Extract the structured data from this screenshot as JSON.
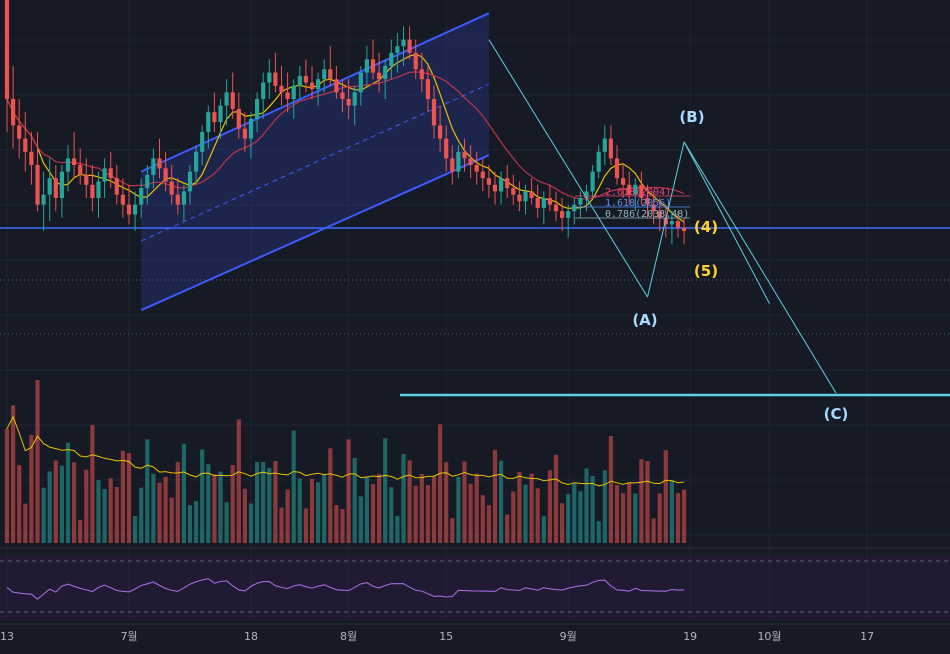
{
  "chart_data": {
    "type": "candlestick",
    "time_axis": {
      "ticks": [
        {
          "label": "13",
          "i": 0
        },
        {
          "label": "7월",
          "i": 20
        },
        {
          "label": "18",
          "i": 40
        },
        {
          "label": "8월",
          "i": 56
        },
        {
          "label": "15",
          "i": 72
        },
        {
          "label": "9월",
          "i": 92
        },
        {
          "label": "19",
          "i": 112
        },
        {
          "label": "10월",
          "i": 125
        },
        {
          "label": "17",
          "i": 141
        }
      ]
    },
    "price_axis": {
      "min": 0,
      "max": 100
    },
    "candles": [
      [
        100,
        100,
        60,
        70
      ],
      [
        70,
        80,
        55,
        62
      ],
      [
        62,
        70,
        52,
        58
      ],
      [
        58,
        66,
        48,
        54
      ],
      [
        54,
        60,
        44,
        50
      ],
      [
        50,
        60,
        36,
        38
      ],
      [
        38,
        48,
        30,
        41
      ],
      [
        41,
        52,
        33,
        46
      ],
      [
        46,
        50,
        36,
        40
      ],
      [
        40,
        50,
        34,
        48
      ],
      [
        48,
        56,
        42,
        52
      ],
      [
        52,
        60,
        46,
        50
      ],
      [
        50,
        55,
        44,
        47
      ],
      [
        47,
        52,
        40,
        44
      ],
      [
        44,
        50,
        36,
        40
      ],
      [
        40,
        48,
        34,
        45
      ],
      [
        45,
        52,
        40,
        49
      ],
      [
        49,
        54,
        43,
        46
      ],
      [
        46,
        50,
        38,
        41
      ],
      [
        41,
        46,
        34,
        38
      ],
      [
        38,
        44,
        32,
        35
      ],
      [
        35,
        42,
        30,
        38
      ],
      [
        38,
        46,
        34,
        43
      ],
      [
        43,
        50,
        38,
        47
      ],
      [
        47,
        55,
        43,
        52
      ],
      [
        52,
        58,
        46,
        49
      ],
      [
        49,
        54,
        42,
        45
      ],
      [
        45,
        50,
        38,
        41
      ],
      [
        41,
        46,
        35,
        38
      ],
      [
        38,
        44,
        33,
        42
      ],
      [
        42,
        50,
        38,
        48
      ],
      [
        48,
        56,
        44,
        54
      ],
      [
        54,
        62,
        50,
        60
      ],
      [
        60,
        68,
        55,
        66
      ],
      [
        66,
        72,
        60,
        63
      ],
      [
        63,
        70,
        58,
        68
      ],
      [
        68,
        76,
        62,
        72
      ],
      [
        72,
        78,
        64,
        67
      ],
      [
        67,
        72,
        58,
        61
      ],
      [
        61,
        66,
        54,
        58
      ],
      [
        58,
        66,
        52,
        64
      ],
      [
        64,
        72,
        60,
        70
      ],
      [
        70,
        78,
        64,
        75
      ],
      [
        75,
        82,
        70,
        78
      ],
      [
        78,
        84,
        72,
        74
      ],
      [
        74,
        80,
        68,
        72
      ],
      [
        72,
        78,
        66,
        70
      ],
      [
        70,
        76,
        64,
        74
      ],
      [
        74,
        80,
        70,
        77
      ],
      [
        77,
        82,
        72,
        75
      ],
      [
        75,
        80,
        70,
        73
      ],
      [
        73,
        78,
        68,
        76
      ],
      [
        76,
        82,
        72,
        79
      ],
      [
        79,
        86,
        74,
        76
      ],
      [
        76,
        80,
        70,
        72
      ],
      [
        72,
        76,
        66,
        70
      ],
      [
        70,
        76,
        64,
        68
      ],
      [
        68,
        74,
        62,
        72
      ],
      [
        72,
        80,
        68,
        78
      ],
      [
        78,
        86,
        74,
        82
      ],
      [
        82,
        88,
        76,
        78
      ],
      [
        78,
        84,
        72,
        76
      ],
      [
        76,
        82,
        70,
        80
      ],
      [
        80,
        88,
        76,
        84
      ],
      [
        84,
        90,
        78,
        86
      ],
      [
        86,
        92,
        80,
        88
      ],
      [
        88,
        92,
        82,
        84
      ],
      [
        84,
        88,
        76,
        79
      ],
      [
        79,
        84,
        72,
        76
      ],
      [
        76,
        80,
        66,
        70
      ],
      [
        70,
        74,
        58,
        62
      ],
      [
        62,
        68,
        54,
        58
      ],
      [
        58,
        62,
        48,
        52
      ],
      [
        52,
        56,
        44,
        48
      ],
      [
        48,
        56,
        46,
        54
      ],
      [
        54,
        58,
        48,
        52
      ],
      [
        52,
        56,
        46,
        50
      ],
      [
        50,
        54,
        44,
        48
      ],
      [
        48,
        52,
        42,
        46
      ],
      [
        46,
        50,
        40,
        44
      ],
      [
        44,
        48,
        38,
        42
      ],
      [
        42,
        48,
        38,
        46
      ],
      [
        46,
        50,
        40,
        43
      ],
      [
        43,
        47,
        38,
        41
      ],
      [
        41,
        45,
        36,
        39
      ],
      [
        39,
        44,
        35,
        42
      ],
      [
        42,
        46,
        38,
        40
      ],
      [
        40,
        44,
        34,
        37
      ],
      [
        37,
        42,
        32,
        40
      ],
      [
        40,
        44,
        36,
        38
      ],
      [
        38,
        42,
        33,
        36
      ],
      [
        36,
        40,
        30,
        34
      ],
      [
        34,
        38,
        28,
        36
      ],
      [
        36,
        40,
        32,
        38
      ],
      [
        38,
        42,
        34,
        40
      ],
      [
        40,
        44,
        36,
        42
      ],
      [
        42,
        50,
        40,
        48
      ],
      [
        48,
        56,
        46,
        54
      ],
      [
        54,
        62,
        50,
        58
      ],
      [
        58,
        62,
        50,
        52
      ],
      [
        52,
        56,
        44,
        46
      ],
      [
        46,
        50,
        40,
        44
      ],
      [
        44,
        48,
        38,
        41
      ],
      [
        41,
        46,
        36,
        44
      ],
      [
        44,
        48,
        38,
        40
      ],
      [
        40,
        44,
        34,
        38
      ],
      [
        38,
        42,
        32,
        36
      ],
      [
        36,
        40,
        30,
        34
      ],
      [
        34,
        38,
        28,
        32
      ],
      [
        32,
        36,
        26,
        33
      ],
      [
        33,
        36,
        28,
        31
      ],
      [
        31,
        34,
        26,
        30
      ]
    ],
    "volume": [],
    "annotations": {
      "wave_labels": [
        {
          "text": "(B)",
          "color": "#a8dcff"
        },
        {
          "text": "(A)",
          "color": "#a8dcff"
        },
        {
          "text": "(C)",
          "color": "#a8dcff"
        },
        {
          "text": "(4)",
          "color": "#ffd22e"
        },
        {
          "text": "(5)",
          "color": "#ffd22e"
        }
      ],
      "fib_levels": [
        "2.618(2094)",
        "1.618(2056)",
        "0.786(2038.48)"
      ]
    },
    "colors": {
      "up": "#26a69a",
      "down": "#ef5350",
      "channel": "#3d5afe",
      "hline": "#3f6bff",
      "cyan": "#5ecfe0",
      "ma_fast": "#e6c200",
      "ma_slow": "#c0334a",
      "rsi": "#a36bd9"
    }
  }
}
